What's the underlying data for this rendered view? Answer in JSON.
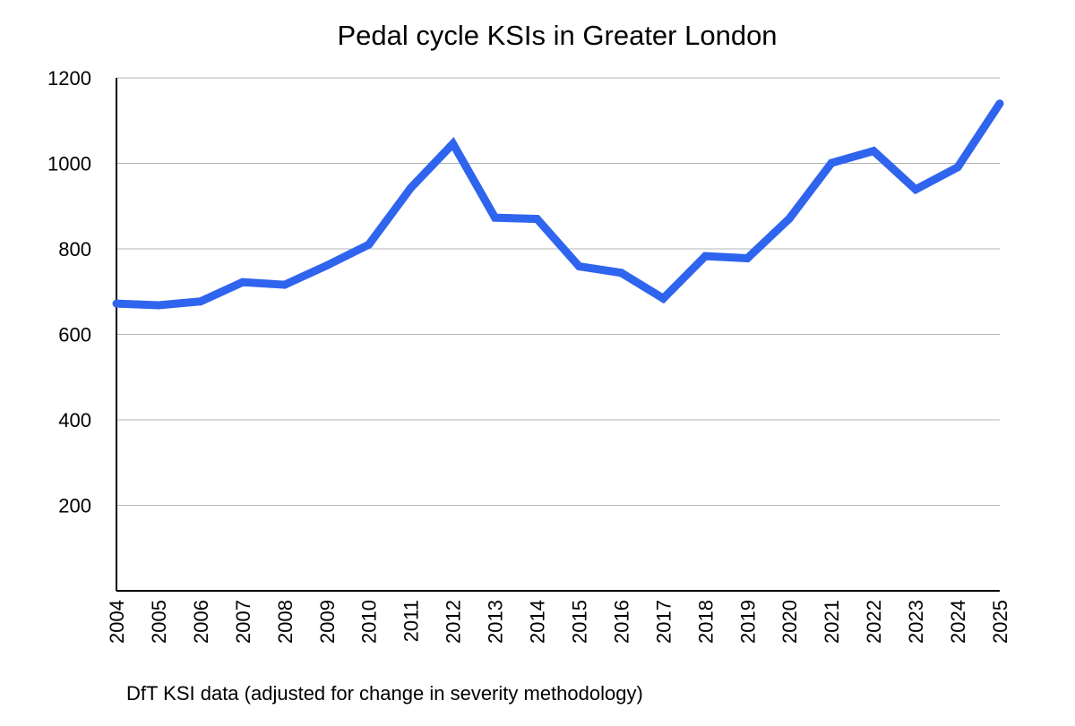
{
  "chart_data": {
    "type": "line",
    "title": "Pedal cycle KSIs in Greater London",
    "xlabel": "",
    "ylabel": "",
    "x": [
      "2004",
      "2005",
      "2006",
      "2007",
      "2008",
      "2009",
      "2010",
      "2011",
      "2012",
      "2013",
      "2014",
      "2015",
      "2016",
      "2017",
      "2018",
      "2019",
      "2020",
      "2021",
      "2022",
      "2023",
      "2024",
      "2025"
    ],
    "series": [
      {
        "name": "Pedal cycle KSIs",
        "color": "#2f64ee",
        "values": [
          672,
          668,
          677,
          722,
          716,
          761,
          810,
          943,
          1046,
          873,
          870,
          759,
          744,
          684,
          783,
          778,
          871,
          1001,
          1029,
          939,
          991,
          1140
        ]
      }
    ],
    "ylim": [
      0,
      1200
    ],
    "yticks": [
      "200",
      "400",
      "600",
      "800",
      "1000",
      "1200"
    ],
    "grid": true,
    "legend": "none",
    "note": "DfT KSI data (adjusted for change in severity methodology)"
  }
}
